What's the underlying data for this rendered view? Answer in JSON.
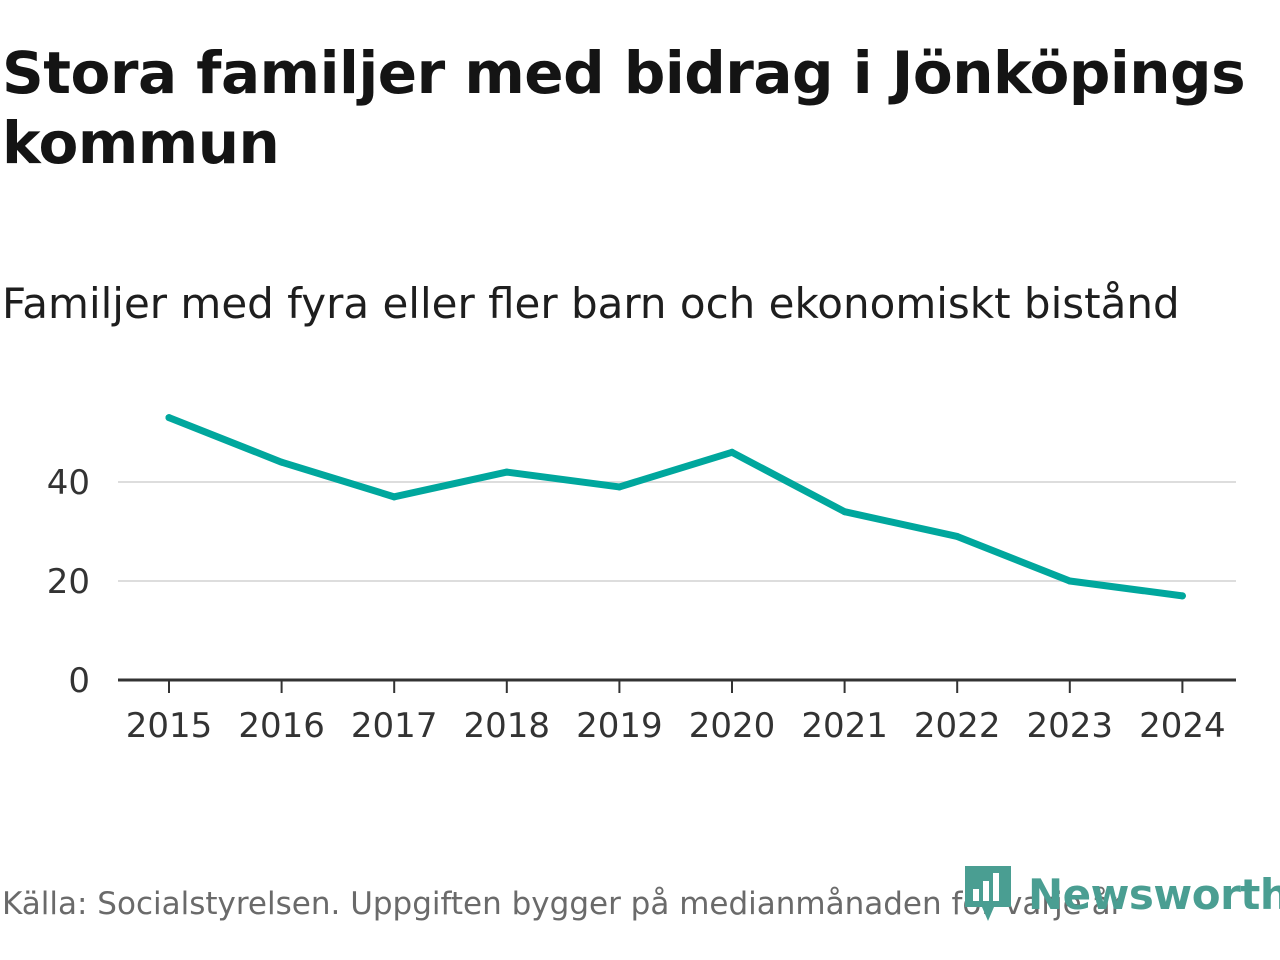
{
  "title": "Stora familjer med bidrag i Jönköpings kommun",
  "subtitle": "Familjer med fyra eller fler barn och ekonomiskt bistånd",
  "source": "Källa: Socialstyrelsen. Uppgiften bygger på medianmånaden för varje år",
  "brand": {
    "name": "Newsworthy",
    "color": "#4a9e92",
    "icon": "newsworthy-logo-icon"
  },
  "colors": {
    "line": "#00a79d",
    "grid": "#dddddd",
    "axis": "#333333"
  },
  "chart_data": {
    "type": "line",
    "title": "Stora familjer med bidrag i Jönköpings kommun",
    "subtitle": "Familjer med fyra eller fler barn och ekonomiskt bistånd",
    "x": [
      "2015",
      "2016",
      "2017",
      "2018",
      "2019",
      "2020",
      "2021",
      "2022",
      "2023",
      "2024"
    ],
    "series": [
      {
        "name": "Familjer",
        "values": [
          53,
          44,
          37,
          42,
          39,
          46,
          34,
          29,
          20,
          17
        ]
      }
    ],
    "yticks": [
      0,
      20,
      40
    ],
    "ylim": [
      0,
      56
    ],
    "xlabel": "",
    "ylabel": "",
    "grid": true,
    "legend": "none"
  }
}
